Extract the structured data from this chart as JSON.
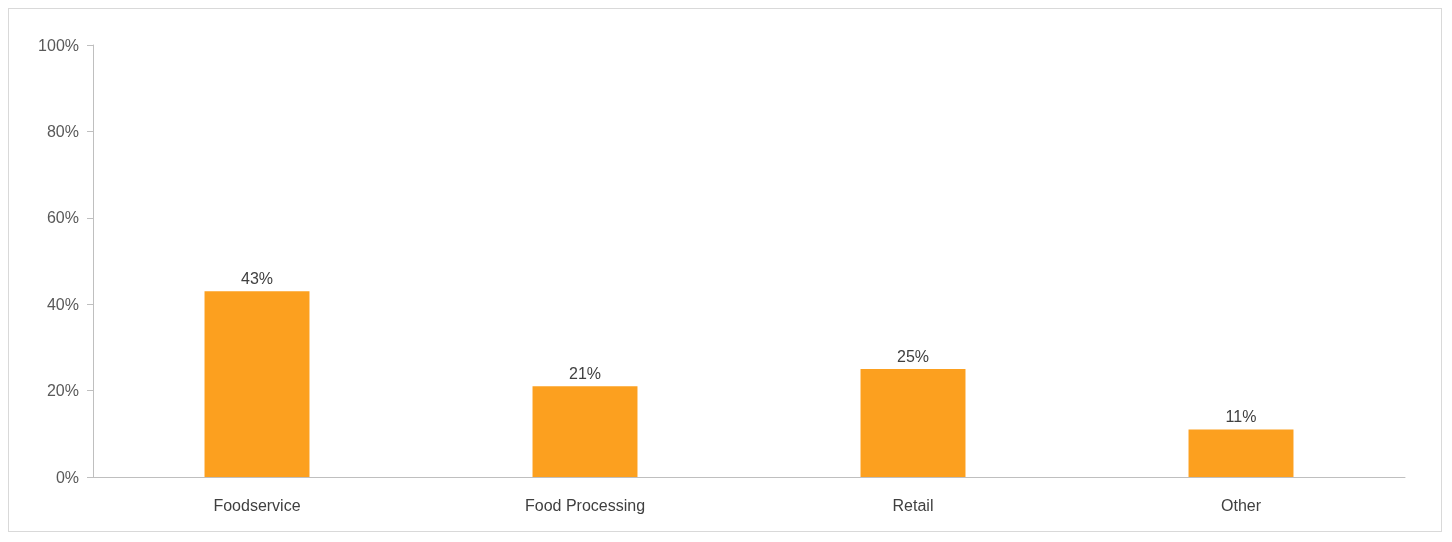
{
  "chart_data": {
    "type": "bar",
    "categories": [
      "Foodservice",
      "Food Processing",
      "Retail",
      "Other"
    ],
    "values": [
      43,
      21,
      25,
      11
    ],
    "value_labels": [
      "43%",
      "21%",
      "25%",
      "11%"
    ],
    "color": "#fca01f",
    "ylim": [
      0,
      100
    ],
    "yticks": [
      {
        "value": 0,
        "label": "0%"
      },
      {
        "value": 20,
        "label": "20%"
      },
      {
        "value": 40,
        "label": "40%"
      },
      {
        "value": 60,
        "label": "60%"
      },
      {
        "value": 80,
        "label": "80%"
      },
      {
        "value": 100,
        "label": "100%"
      }
    ],
    "grid": false
  }
}
